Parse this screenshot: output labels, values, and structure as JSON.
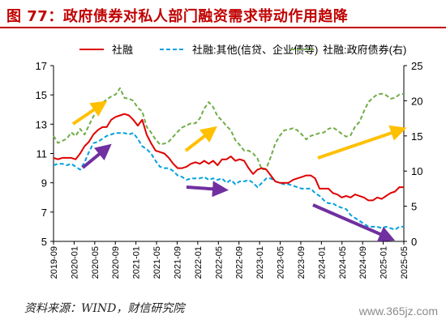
{
  "header": {
    "title": "图 77：政府债券对私人部门融资需求带动作用趋降"
  },
  "footer": {
    "source": "资料来源：WIND，财信研究院",
    "watermark": "www.365jz.com"
  },
  "colors": {
    "title": "#c00000",
    "social": "#e00000",
    "other": "#00a0e0",
    "gov": "#70ad47",
    "arrow_up": "#ffc000",
    "arrow_down": "#7030a0"
  },
  "chart_data": {
    "type": "line",
    "legend": {
      "placement": "top"
    },
    "x_ticks": [
      "2019-09",
      "2020-01",
      "2020-05",
      "2020-09",
      "2021-01",
      "2021-05",
      "2021-09",
      "2022-01",
      "2022-05",
      "2022-09",
      "2023-01",
      "2023-05",
      "2023-09",
      "2024-01",
      "2024-05",
      "2024-09",
      "2025-01",
      "2025-05"
    ],
    "y_left": {
      "min": 5,
      "max": 17,
      "ticks": [
        5,
        7,
        9,
        11,
        13,
        15,
        17
      ]
    },
    "y_right": {
      "min": 0,
      "max": 25,
      "ticks": [
        0,
        5,
        10,
        15,
        20,
        25
      ]
    },
    "grid": false,
    "series": [
      {
        "name": "社融",
        "axis": "left",
        "style": "solid",
        "values": [
          10.7,
          10.6,
          10.7,
          10.7,
          10.7,
          10.6,
          11.0,
          11.5,
          11.8,
          12.3,
          12.6,
          12.8,
          12.8,
          13.3,
          13.5,
          13.6,
          13.7,
          13.6,
          13.3,
          12.9,
          13.3,
          12.3,
          11.7,
          11.2,
          11.1,
          11.0,
          10.7,
          10.3,
          10.0,
          10.0,
          10.1,
          10.3,
          10.4,
          10.3,
          10.5,
          10.3,
          10.5,
          10.2,
          10.6,
          10.6,
          10.8,
          10.5,
          10.6,
          10.5,
          10.0,
          9.6,
          9.9,
          10.0,
          9.9,
          9.5,
          9.1,
          9.0,
          9.0,
          9.0,
          9.2,
          9.3,
          9.4,
          9.5,
          9.5,
          9.3,
          8.6,
          8.6,
          8.6,
          8.3,
          8.2,
          8.0,
          8.1,
          8.0,
          8.2,
          8.1,
          8.0,
          7.8,
          7.8,
          8.0,
          7.9,
          8.1,
          8.3,
          8.4,
          8.7,
          8.7
        ]
      },
      {
        "name": "社融:其他(信贷、企业债等)",
        "axis": "left",
        "style": "dashed",
        "values": [
          10.2,
          10.3,
          10.3,
          10.2,
          10.3,
          10.1,
          9.9,
          10.4,
          11.1,
          11.7,
          11.8,
          12.0,
          12.2,
          12.3,
          12.4,
          12.4,
          12.4,
          12.3,
          12.4,
          12.0,
          11.5,
          11.3,
          11.0,
          10.5,
          10.1,
          10.0,
          10.0,
          9.8,
          9.5,
          9.4,
          9.2,
          9.3,
          9.3,
          9.3,
          9.4,
          9.2,
          9.3,
          9.2,
          9.3,
          9.0,
          9.2,
          8.9,
          9.1,
          9.1,
          9.2,
          9.0,
          8.7,
          9.0,
          9.3,
          9.3,
          9.1,
          9.0,
          8.9,
          8.9,
          8.8,
          8.7,
          8.6,
          8.6,
          8.6,
          8.3,
          8.1,
          7.8,
          7.6,
          7.6,
          7.4,
          7.3,
          7.2,
          6.8,
          6.6,
          6.4,
          6.2,
          6.0,
          6.0,
          6.0,
          5.9,
          6.0,
          5.9,
          5.8,
          6.0,
          6.0
        ]
      },
      {
        "name": "社融:政府债券(右)",
        "axis": "right",
        "style": "dashed",
        "values": [
          15.0,
          14.0,
          14.3,
          14.6,
          15.5,
          15.0,
          16.0,
          15.2,
          16.5,
          17.8,
          18.5,
          19.7,
          20.2,
          20.6,
          20.9,
          21.8,
          20.4,
          20.3,
          20.0,
          19.0,
          18.5,
          16.3,
          15.5,
          14.5,
          13.8,
          13.9,
          14.2,
          14.9,
          15.6,
          16.2,
          16.5,
          16.8,
          16.8,
          17.5,
          18.9,
          19.8,
          19.1,
          17.8,
          17.2,
          16.4,
          15.8,
          14.4,
          13.7,
          12.9,
          12.9,
          12.5,
          11.8,
          10.2,
          10.4,
          12.0,
          13.9,
          15.0,
          15.8,
          15.9,
          16.1,
          15.8,
          15.2,
          14.5,
          15.0,
          15.2,
          15.4,
          15.5,
          16.0,
          16.2,
          15.8,
          15.3,
          14.9,
          15.1,
          16.3,
          17.0,
          18.5,
          19.8,
          20.4,
          20.9,
          21.0,
          20.8,
          20.3,
          20.4,
          20.9,
          21.0
        ]
      }
    ]
  }
}
